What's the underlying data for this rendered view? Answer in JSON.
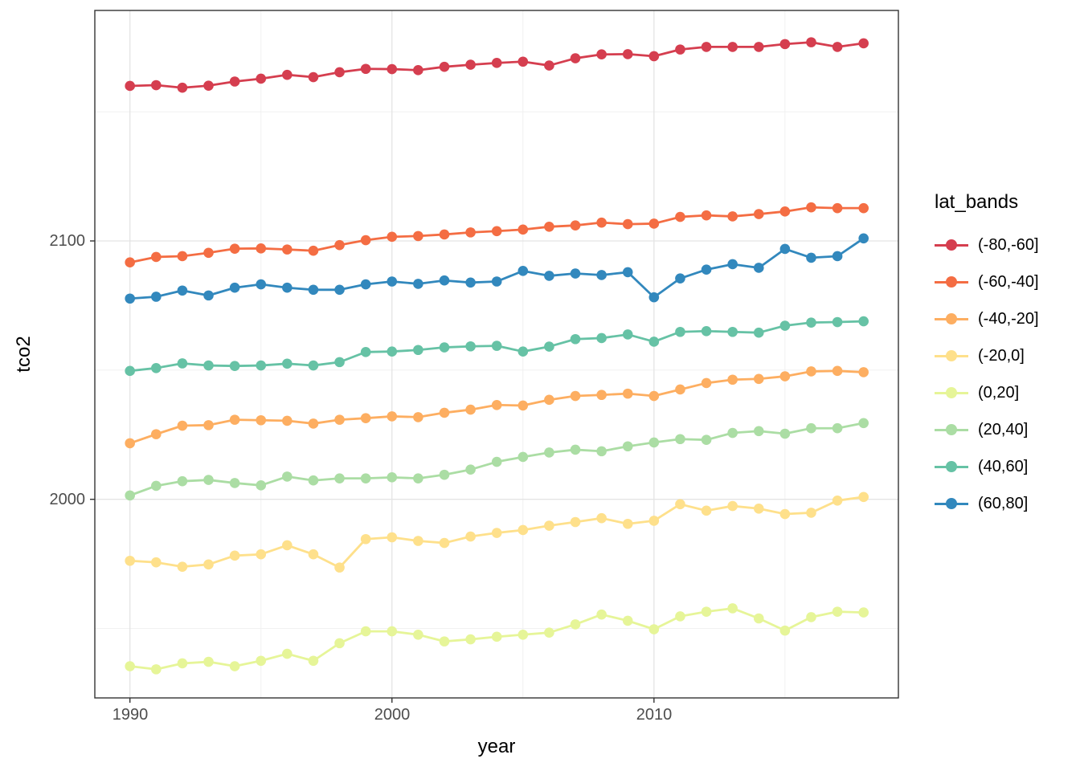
{
  "figure": {
    "background": "#ffffff",
    "panel_border_color": "#333333",
    "grid_major_color": "#e4e4e4",
    "grid_minor_color": "#efefef",
    "axis_text_color": "#4d4d4d",
    "axis_title_color": "#000000"
  },
  "axes": {
    "x_title": "year",
    "y_title": "tco2",
    "x_tick_labels": [
      "1990",
      "2000",
      "2010"
    ],
    "y_tick_labels": [
      "2100",
      "2000"
    ]
  },
  "legend": {
    "title": "lat_bands",
    "position": "right"
  },
  "chart_data": {
    "type": "line",
    "title": "",
    "xlabel": "year",
    "ylabel": "tco2",
    "legend_title": "lat_bands",
    "legend_position": "right",
    "grid": true,
    "xlim": [
      1988.7,
      2019.3
    ],
    "ylim": [
      1922,
      2189
    ],
    "x_ticks": [
      1990,
      2000,
      2010
    ],
    "x_minor_ticks": [
      1995,
      2005,
      2015
    ],
    "y_ticks": [
      2100,
      2000
    ],
    "y_minor_ticks": [
      1950,
      2050,
      2150
    ],
    "x": [
      1990,
      1991,
      1992,
      1993,
      1994,
      1995,
      1996,
      1997,
      1998,
      1999,
      2000,
      2001,
      2002,
      2003,
      2004,
      2005,
      2006,
      2007,
      2008,
      2009,
      2010,
      2011,
      2012,
      2013,
      2014,
      2015,
      2016,
      2017,
      2018
    ],
    "series": [
      {
        "name": "(-80,-60]",
        "color": "#d53e4f",
        "values": [
          2160.0,
          2160.3,
          2159.3,
          2160.1,
          2161.7,
          2162.8,
          2164.3,
          2163.4,
          2165.3,
          2166.6,
          2166.5,
          2166.1,
          2167.4,
          2168.2,
          2168.9,
          2169.4,
          2167.9,
          2170.7,
          2172.2,
          2172.3,
          2171.5,
          2174.1,
          2175.1,
          2175.1,
          2175.1,
          2176.2,
          2176.9,
          2175.1,
          2176.5
        ]
      },
      {
        "name": "(-60,-40]",
        "color": "#f46d43",
        "values": [
          2091.7,
          2093.8,
          2094.1,
          2095.4,
          2097.0,
          2097.1,
          2096.7,
          2096.2,
          2098.4,
          2100.3,
          2101.6,
          2101.9,
          2102.5,
          2103.3,
          2103.8,
          2104.4,
          2105.5,
          2106.0,
          2107.1,
          2106.5,
          2106.7,
          2109.3,
          2109.9,
          2109.5,
          2110.4,
          2111.4,
          2113.0,
          2112.7,
          2112.7
        ]
      },
      {
        "name": "(-40,-20]",
        "color": "#fdae61",
        "values": [
          2021.7,
          2025.2,
          2028.5,
          2028.7,
          2030.8,
          2030.6,
          2030.4,
          2029.3,
          2030.8,
          2031.4,
          2032.1,
          2031.8,
          2033.5,
          2034.7,
          2036.5,
          2036.3,
          2038.5,
          2040.0,
          2040.4,
          2040.9,
          2040.0,
          2042.5,
          2045.0,
          2046.3,
          2046.6,
          2047.6,
          2049.5,
          2049.7,
          2049.2
        ]
      },
      {
        "name": "(-20,0]",
        "color": "#fee08b",
        "values": [
          1976.2,
          1975.6,
          1973.9,
          1974.8,
          1978.2,
          1978.7,
          1982.2,
          1978.7,
          1973.6,
          1984.6,
          1985.3,
          1983.9,
          1983.1,
          1985.6,
          1987.0,
          1988.1,
          1989.8,
          1991.2,
          1992.7,
          1990.5,
          1991.7,
          1998.1,
          1995.6,
          1997.4,
          1996.4,
          1994.3,
          1994.8,
          1999.5,
          2000.9
        ]
      },
      {
        "name": "(0,20]",
        "color": "#e6f598",
        "values": [
          1935.4,
          1934.2,
          1936.5,
          1937.1,
          1935.4,
          1937.5,
          1940.2,
          1937.5,
          1944.3,
          1948.9,
          1948.9,
          1947.6,
          1945.0,
          1945.8,
          1946.8,
          1947.6,
          1948.4,
          1951.6,
          1955.4,
          1953.0,
          1949.7,
          1954.7,
          1956.5,
          1957.8,
          1953.9,
          1949.2,
          1954.4,
          1956.5,
          1956.2
        ]
      },
      {
        "name": "(20,40]",
        "color": "#abdda4",
        "values": [
          2001.5,
          2005.2,
          2007.0,
          2007.5,
          2006.3,
          2005.4,
          2008.8,
          2007.3,
          2008.1,
          2008.1,
          2008.5,
          2008.1,
          2009.5,
          2011.5,
          2014.5,
          2016.4,
          2018.1,
          2019.2,
          2018.6,
          2020.5,
          2022.0,
          2023.3,
          2023.0,
          2025.7,
          2026.4,
          2025.4,
          2027.5,
          2027.5,
          2029.5
        ]
      },
      {
        "name": "(40,60]",
        "color": "#66c2a5",
        "values": [
          2049.7,
          2050.8,
          2052.6,
          2051.8,
          2051.6,
          2051.8,
          2052.5,
          2051.8,
          2053.1,
          2057.0,
          2057.2,
          2057.8,
          2058.8,
          2059.2,
          2059.4,
          2057.2,
          2059.1,
          2062.0,
          2062.4,
          2063.8,
          2061.0,
          2064.8,
          2065.1,
          2064.8,
          2064.5,
          2067.2,
          2068.4,
          2068.6,
          2068.9
        ]
      },
      {
        "name": "(60,80]",
        "color": "#3288bd",
        "values": [
          2077.7,
          2078.4,
          2080.8,
          2078.9,
          2081.9,
          2083.2,
          2081.9,
          2081.1,
          2081.1,
          2083.2,
          2084.3,
          2083.4,
          2084.7,
          2083.9,
          2084.3,
          2088.4,
          2086.5,
          2087.4,
          2086.8,
          2087.9,
          2078.2,
          2085.5,
          2088.9,
          2091.0,
          2089.6,
          2096.9,
          2093.5,
          2094.1,
          2101.0
        ]
      }
    ]
  }
}
